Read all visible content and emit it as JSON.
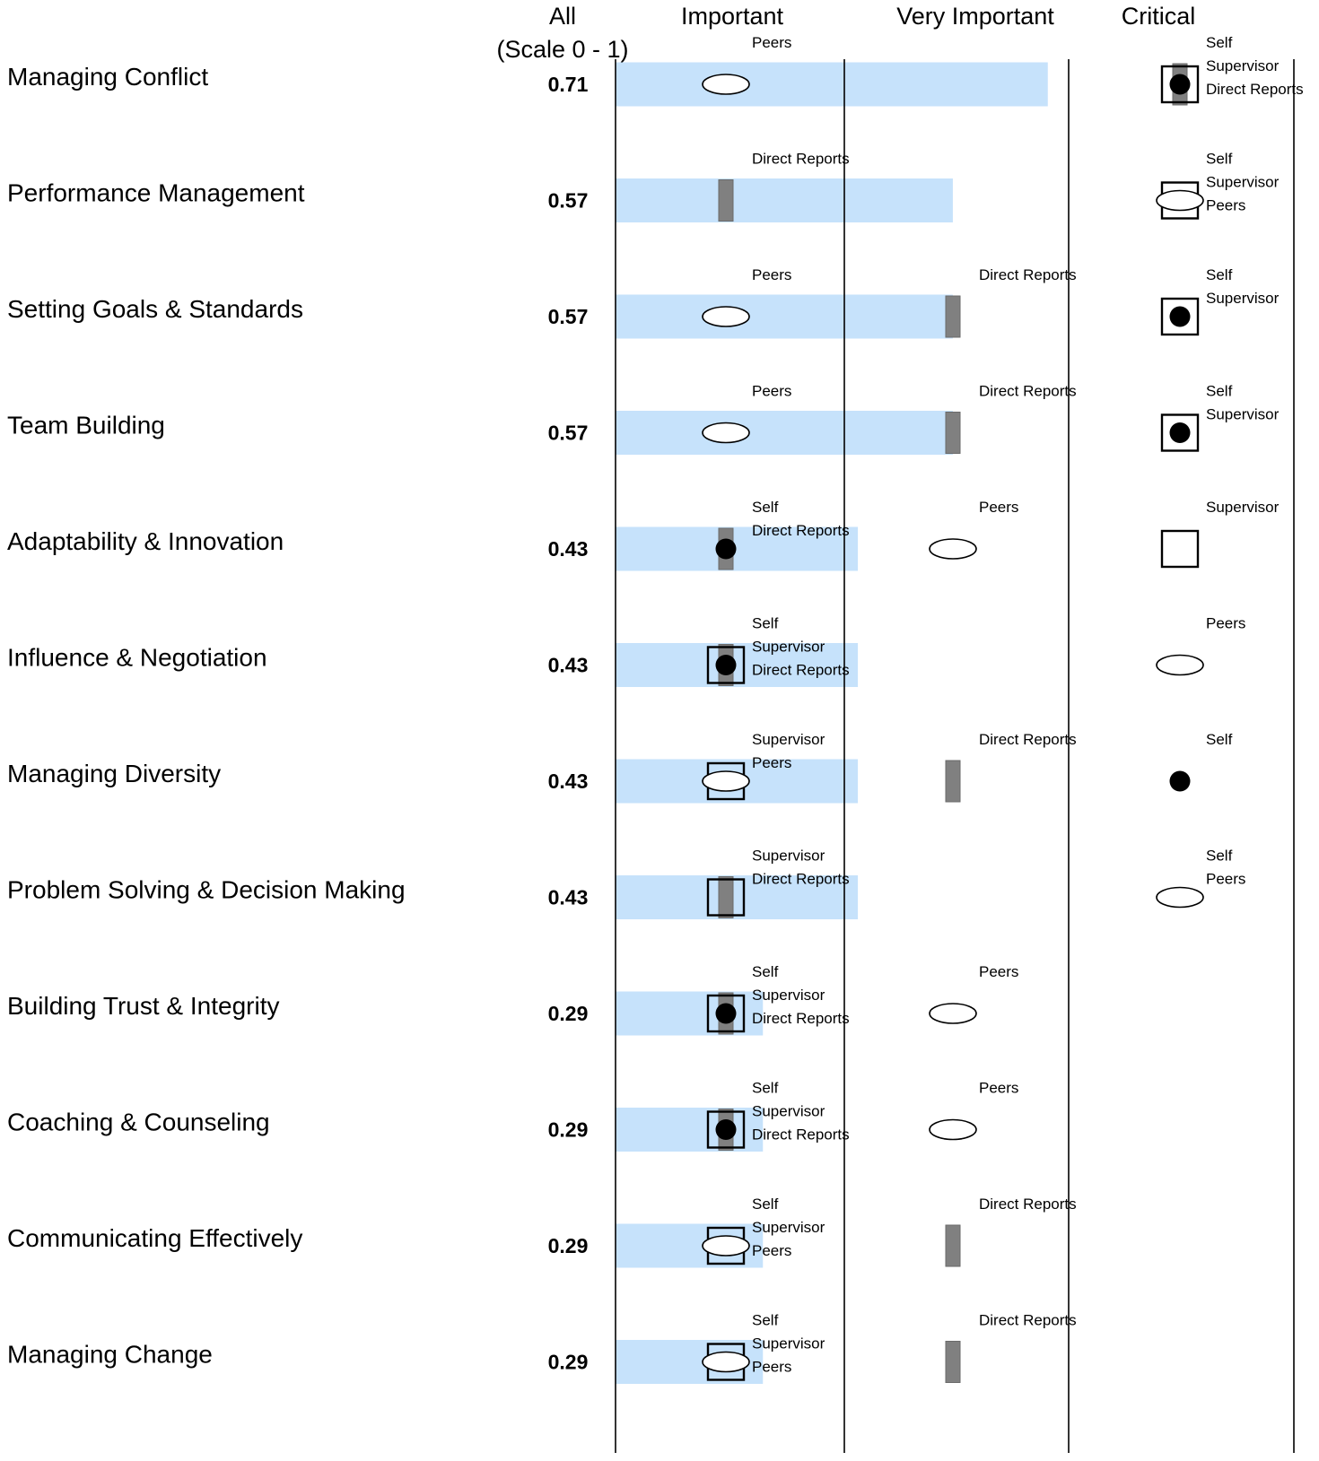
{
  "chart_data": {
    "type": "dot-range",
    "header": {
      "all_label_line1": "All",
      "all_label_line2": "(Scale 0 - 1)",
      "levels": [
        "Important",
        "Very Important",
        "Critical"
      ]
    },
    "raters": {
      "Self": {
        "marker": "filled-circle",
        "color": "#000000"
      },
      "Supervisor": {
        "marker": "open-square",
        "color": "#000000"
      },
      "Peers": {
        "marker": "open-ellipse",
        "color": "#000000"
      },
      "Direct Reports": {
        "marker": "gray-bar",
        "color": "#808080"
      }
    },
    "range_bar_color": "#c6e2fb",
    "rows": [
      {
        "competency": "Managing Conflict",
        "score": "0.71",
        "range": [
          "Important",
          "Very Important"
        ],
        "groups": [
          {
            "level": "Important",
            "raters": [
              "Peers"
            ]
          },
          {
            "level": "Critical",
            "raters": [
              "Self",
              "Supervisor",
              "Direct Reports"
            ]
          }
        ]
      },
      {
        "competency": "Performance Management",
        "score": "0.57",
        "range": [
          "Important",
          "Very Important"
        ],
        "groups": [
          {
            "level": "Important",
            "raters": [
              "Direct Reports"
            ]
          },
          {
            "level": "Critical",
            "raters": [
              "Self",
              "Supervisor",
              "Peers"
            ]
          }
        ]
      },
      {
        "competency": "Setting Goals & Standards",
        "score": "0.57",
        "range": [
          "Important",
          "Very Important"
        ],
        "groups": [
          {
            "level": "Important",
            "raters": [
              "Peers"
            ]
          },
          {
            "level": "Very Important",
            "raters": [
              "Direct Reports"
            ]
          },
          {
            "level": "Critical",
            "raters": [
              "Self",
              "Supervisor"
            ]
          }
        ]
      },
      {
        "competency": "Team Building",
        "score": "0.57",
        "range": [
          "Important",
          "Very Important"
        ],
        "groups": [
          {
            "level": "Important",
            "raters": [
              "Peers"
            ]
          },
          {
            "level": "Very Important",
            "raters": [
              "Direct Reports"
            ]
          },
          {
            "level": "Critical",
            "raters": [
              "Self",
              "Supervisor"
            ]
          }
        ]
      },
      {
        "competency": "Adaptability & Innovation",
        "score": "0.43",
        "range": [
          "Important",
          "Very Important"
        ],
        "groups": [
          {
            "level": "Important",
            "raters": [
              "Self",
              "Direct Reports"
            ]
          },
          {
            "level": "Very Important",
            "raters": [
              "Peers"
            ]
          },
          {
            "level": "Critical",
            "raters": [
              "Supervisor"
            ]
          }
        ]
      },
      {
        "competency": "Influence & Negotiation",
        "score": "0.43",
        "range": [
          "Important",
          "Very Important"
        ],
        "groups": [
          {
            "level": "Important",
            "raters": [
              "Self",
              "Supervisor",
              "Direct Reports"
            ]
          },
          {
            "level": "Critical",
            "raters": [
              "Peers"
            ]
          }
        ]
      },
      {
        "competency": "Managing Diversity",
        "score": "0.43",
        "range": [
          "Important",
          "Very Important"
        ],
        "groups": [
          {
            "level": "Important",
            "raters": [
              "Supervisor",
              "Peers"
            ]
          },
          {
            "level": "Very Important",
            "raters": [
              "Direct Reports"
            ]
          },
          {
            "level": "Critical",
            "raters": [
              "Self"
            ]
          }
        ]
      },
      {
        "competency": "Problem Solving & Decision Making",
        "score": "0.43",
        "range": [
          "Important",
          "Very Important"
        ],
        "groups": [
          {
            "level": "Important",
            "raters": [
              "Supervisor",
              "Direct Reports"
            ]
          },
          {
            "level": "Critical",
            "raters": [
              "Self",
              "Peers"
            ]
          }
        ]
      },
      {
        "competency": "Building Trust & Integrity",
        "score": "0.29",
        "range": [
          "Important",
          "Very Important"
        ],
        "groups": [
          {
            "level": "Important",
            "raters": [
              "Self",
              "Supervisor",
              "Direct Reports"
            ]
          },
          {
            "level": "Very Important",
            "raters": [
              "Peers"
            ]
          }
        ]
      },
      {
        "competency": "Coaching & Counseling",
        "score": "0.29",
        "range": [
          "Important",
          "Very Important"
        ],
        "groups": [
          {
            "level": "Important",
            "raters": [
              "Self",
              "Supervisor",
              "Direct Reports"
            ]
          },
          {
            "level": "Very Important",
            "raters": [
              "Peers"
            ]
          }
        ]
      },
      {
        "competency": "Communicating Effectively",
        "score": "0.29",
        "range": [
          "Important",
          "Very Important"
        ],
        "groups": [
          {
            "level": "Important",
            "raters": [
              "Self",
              "Supervisor",
              "Peers"
            ]
          },
          {
            "level": "Very Important",
            "raters": [
              "Direct Reports"
            ]
          }
        ]
      },
      {
        "competency": "Managing Change",
        "score": "0.29",
        "range": [
          "Important",
          "Very Important"
        ],
        "groups": [
          {
            "level": "Important",
            "raters": [
              "Self",
              "Supervisor",
              "Peers"
            ]
          },
          {
            "level": "Very Important",
            "raters": [
              "Direct Reports"
            ]
          }
        ]
      }
    ]
  }
}
